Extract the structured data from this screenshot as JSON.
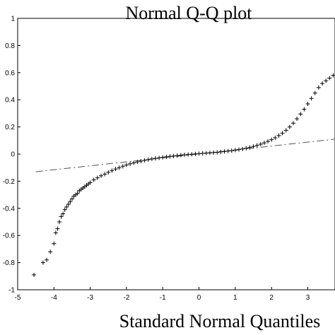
{
  "chart_data": {
    "type": "scatter",
    "title": "Normal Q-Q plot",
    "xlabel": "Standard Normal Quantiles",
    "ylabel": "",
    "xlim": [
      -5,
      3.75
    ],
    "ylim": [
      -1,
      1
    ],
    "xticks": [
      -5,
      -4,
      -3,
      -2,
      -1,
      0,
      1,
      2,
      3
    ],
    "yticks": [
      -1,
      -0.8,
      -0.6,
      -0.4,
      -0.2,
      0,
      0.2,
      0.4,
      0.6,
      0.8,
      1
    ],
    "xtick_labels": [
      "-5",
      "-4",
      "-3",
      "-2",
      "-1",
      "0",
      "1",
      "2",
      "3"
    ],
    "ytick_labels": [
      "-1",
      "-0.8",
      "-0.6",
      "-0.4",
      "-0.2",
      "0",
      "0.2",
      "0.4",
      "0.6",
      "0.8",
      "1"
    ],
    "grid": false,
    "marker": "+",
    "reference_line": {
      "style": "dash-dot",
      "color": "#555555",
      "x": [
        -4.5,
        3.75
      ],
      "y": [
        -0.13,
        0.11
      ]
    },
    "series": [
      {
        "x": [
          -4.55,
          -4.3,
          -4.2,
          -4.1,
          -4.0,
          -3.95,
          -3.9,
          -3.85,
          -3.8,
          -3.75,
          -3.7,
          -3.65,
          -3.6,
          -3.55,
          -3.5,
          -3.45,
          -3.4,
          -3.35,
          -3.3,
          -3.25,
          -3.2,
          -3.15,
          -3.1,
          -3.05,
          -3.0,
          -2.9,
          -2.8,
          -2.7,
          -2.6,
          -2.5,
          -2.4,
          -2.3,
          -2.2,
          -2.1,
          -2.0,
          -1.9,
          -1.8,
          -1.7,
          -1.6,
          -1.5,
          -1.4,
          -1.3,
          -1.2,
          -1.1,
          -1.0,
          -0.9,
          -0.8,
          -0.7,
          -0.6,
          -0.5,
          -0.4,
          -0.3,
          -0.2,
          -0.1,
          0.0,
          0.1,
          0.2,
          0.3,
          0.4,
          0.5,
          0.6,
          0.7,
          0.8,
          0.9,
          1.0,
          1.1,
          1.2,
          1.3,
          1.4,
          1.5,
          1.6,
          1.7,
          1.8,
          1.9,
          2.0,
          2.1,
          2.2,
          2.3,
          2.4,
          2.5,
          2.6,
          2.7,
          2.8,
          2.9,
          3.0,
          3.1,
          3.2,
          3.3,
          3.4,
          3.5,
          3.6,
          3.7
        ],
        "y": [
          -0.89,
          -0.8,
          -0.78,
          -0.72,
          -0.66,
          -0.58,
          -0.55,
          -0.5,
          -0.46,
          -0.44,
          -0.41,
          -0.39,
          -0.37,
          -0.35,
          -0.33,
          -0.31,
          -0.3,
          -0.29,
          -0.27,
          -0.26,
          -0.25,
          -0.24,
          -0.23,
          -0.22,
          -0.21,
          -0.19,
          -0.175,
          -0.16,
          -0.148,
          -0.135,
          -0.122,
          -0.11,
          -0.1,
          -0.09,
          -0.08,
          -0.072,
          -0.065,
          -0.058,
          -0.052,
          -0.046,
          -0.041,
          -0.036,
          -0.032,
          -0.028,
          -0.024,
          -0.02,
          -0.017,
          -0.014,
          -0.011,
          -0.008,
          -0.005,
          -0.003,
          -0.001,
          0.001,
          0.003,
          0.005,
          0.007,
          0.009,
          0.011,
          0.013,
          0.016,
          0.019,
          0.022,
          0.025,
          0.029,
          0.033,
          0.038,
          0.043,
          0.049,
          0.056,
          0.064,
          0.073,
          0.083,
          0.094,
          0.106,
          0.12,
          0.136,
          0.154,
          0.175,
          0.2,
          0.228,
          0.26,
          0.295,
          0.33,
          0.37,
          0.41,
          0.45,
          0.49,
          0.52,
          0.54,
          0.56,
          0.58
        ]
      }
    ]
  }
}
